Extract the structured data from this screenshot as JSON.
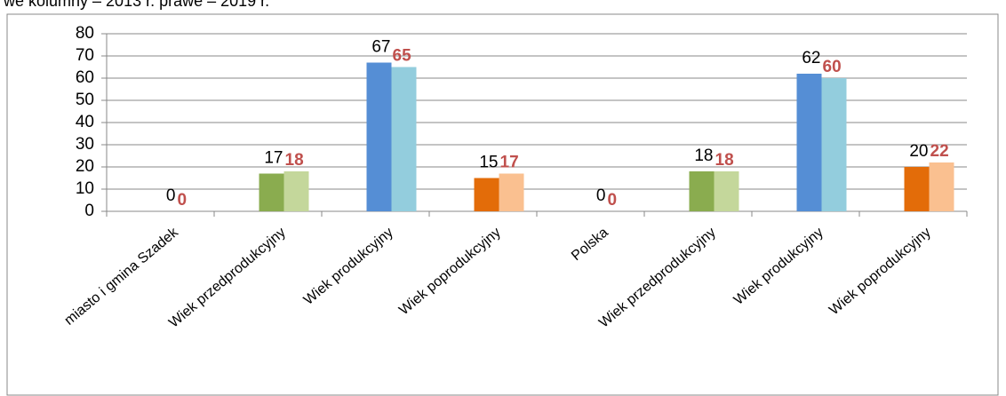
{
  "chart_data": {
    "type": "bar",
    "title": "we kolumny – 2013 r. prawe – 2019 r.",
    "categories": [
      "miasto i gmina Szadek",
      "Wiek przedprodukcyjny",
      "Wiek produkcyjny",
      "Wiek poprodukcyjny",
      "Polska",
      "Wiek przedprodukcyjny",
      "Wiek produkcyjny",
      "Wiek poprodukcyjny"
    ],
    "series": [
      {
        "values": [
          0,
          17,
          67,
          15,
          0,
          18,
          62,
          20
        ],
        "colors": [
          "#8aac4f",
          "#8aac4f",
          "#558ed5",
          "#e36c09",
          "#8aac4f",
          "#8aac4f",
          "#558ed5",
          "#e36c09"
        ]
      },
      {
        "values": [
          0,
          18,
          65,
          17,
          0,
          18,
          60,
          22
        ],
        "colors": [
          "#c4d79b",
          "#c4d79b",
          "#93cddd",
          "#fac090",
          "#c4d79b",
          "#c4d79b",
          "#93cddd",
          "#fac090"
        ]
      }
    ],
    "ylim": [
      0,
      80
    ],
    "yticks": [
      0,
      10,
      20,
      30,
      40,
      50,
      60,
      70,
      80
    ],
    "grid": true
  }
}
